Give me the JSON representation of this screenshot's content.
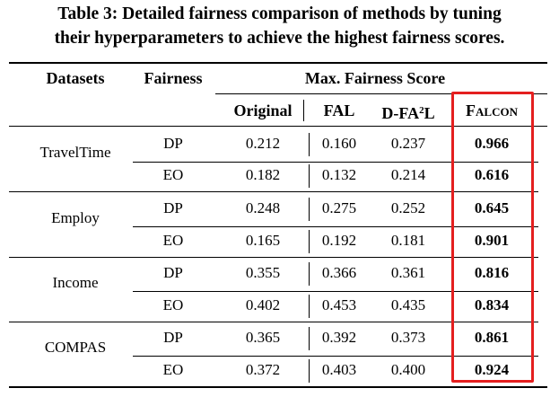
{
  "caption": {
    "line1": "Table 3: Detailed fairness comparison of methods by tuning",
    "line2": "their hyperparameters to achieve the highest fairness scores."
  },
  "headers": {
    "datasets": "Datasets",
    "fairness": "Fairness",
    "max_score": "Max. Fairness Score",
    "original": "Original",
    "fal": "FAL",
    "dfa2l_prefix": "D-FA",
    "dfa2l_sup": "2",
    "dfa2l_suffix": "L",
    "falcon": "Falcon"
  },
  "highlight_color": "#e41f1f",
  "groups": [
    {
      "dataset": "TravelTime",
      "rows": [
        {
          "metric": "DP",
          "original": "0.212",
          "fal": "0.160",
          "dfa2l": "0.237",
          "falcon": "0.966"
        },
        {
          "metric": "EO",
          "original": "0.182",
          "fal": "0.132",
          "dfa2l": "0.214",
          "falcon": "0.616"
        }
      ]
    },
    {
      "dataset": "Employ",
      "rows": [
        {
          "metric": "DP",
          "original": "0.248",
          "fal": "0.275",
          "dfa2l": "0.252",
          "falcon": "0.645"
        },
        {
          "metric": "EO",
          "original": "0.165",
          "fal": "0.192",
          "dfa2l": "0.181",
          "falcon": "0.901"
        }
      ]
    },
    {
      "dataset": "Income",
      "rows": [
        {
          "metric": "DP",
          "original": "0.355",
          "fal": "0.366",
          "dfa2l": "0.361",
          "falcon": "0.816"
        },
        {
          "metric": "EO",
          "original": "0.402",
          "fal": "0.453",
          "dfa2l": "0.435",
          "falcon": "0.834"
        }
      ]
    },
    {
      "dataset": "COMPAS",
      "rows": [
        {
          "metric": "DP",
          "original": "0.365",
          "fal": "0.392",
          "dfa2l": "0.373",
          "falcon": "0.861"
        },
        {
          "metric": "EO",
          "original": "0.372",
          "fal": "0.403",
          "dfa2l": "0.400",
          "falcon": "0.924"
        }
      ]
    }
  ]
}
